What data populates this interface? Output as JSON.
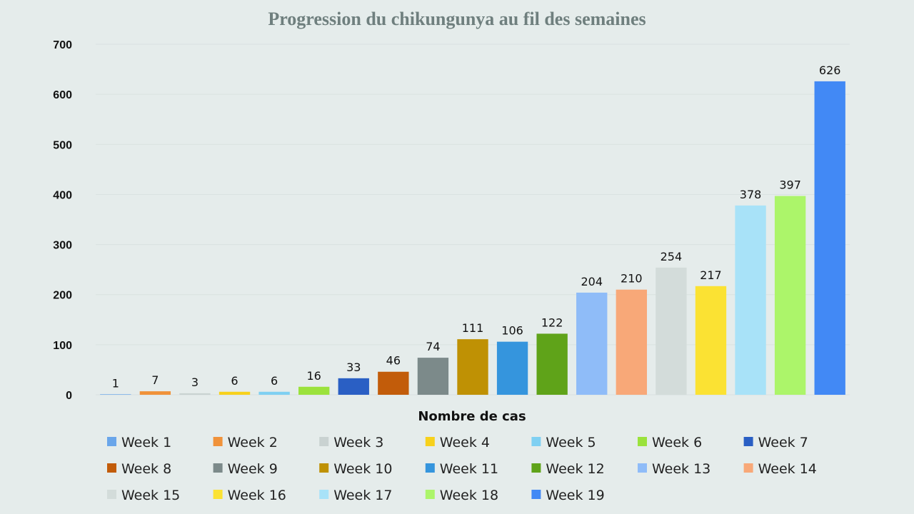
{
  "chart_data": {
    "type": "bar",
    "title": "Progression du chikungunya au fil des semaines",
    "xlabel": "Nombre de cas",
    "ylabel": "",
    "ylim": [
      0,
      700
    ],
    "yticks": [
      "0",
      "100",
      "200",
      "300",
      "400",
      "500",
      "600",
      "700"
    ],
    "grid": true,
    "legend_position": "bottom",
    "series": [
      {
        "name": "Week 1",
        "value": 1,
        "color": "#6aa6ea"
      },
      {
        "name": "Week 2",
        "value": 7,
        "color": "#f0923a"
      },
      {
        "name": "Week 3",
        "value": 3,
        "color": "#c9d2d1"
      },
      {
        "name": "Week 4",
        "value": 6,
        "color": "#f7d11c"
      },
      {
        "name": "Week 5",
        "value": 6,
        "color": "#7fd0f2"
      },
      {
        "name": "Week 6",
        "value": 16,
        "color": "#9be23c"
      },
      {
        "name": "Week 7",
        "value": 33,
        "color": "#2a5fc4"
      },
      {
        "name": "Week 8",
        "value": 46,
        "color": "#c25c0a"
      },
      {
        "name": "Week 9",
        "value": 74,
        "color": "#7c8a8a"
      },
      {
        "name": "Week 10",
        "value": 111,
        "color": "#bf9104"
      },
      {
        "name": "Week 11",
        "value": 106,
        "color": "#3595dd"
      },
      {
        "name": "Week 12",
        "value": 122,
        "color": "#5fa319"
      },
      {
        "name": "Week 13",
        "value": 204,
        "color": "#8fbcf8"
      },
      {
        "name": "Week 14",
        "value": 210,
        "color": "#f8a878"
      },
      {
        "name": "Week 15",
        "value": 254,
        "color": "#d3dcda"
      },
      {
        "name": "Week 16",
        "value": 217,
        "color": "#fbe233"
      },
      {
        "name": "Week 17",
        "value": 378,
        "color": "#a8e2f8"
      },
      {
        "name": "Week 18",
        "value": 397,
        "color": "#acf56a"
      },
      {
        "name": "Week 19",
        "value": 626,
        "color": "#4289f5"
      }
    ]
  }
}
